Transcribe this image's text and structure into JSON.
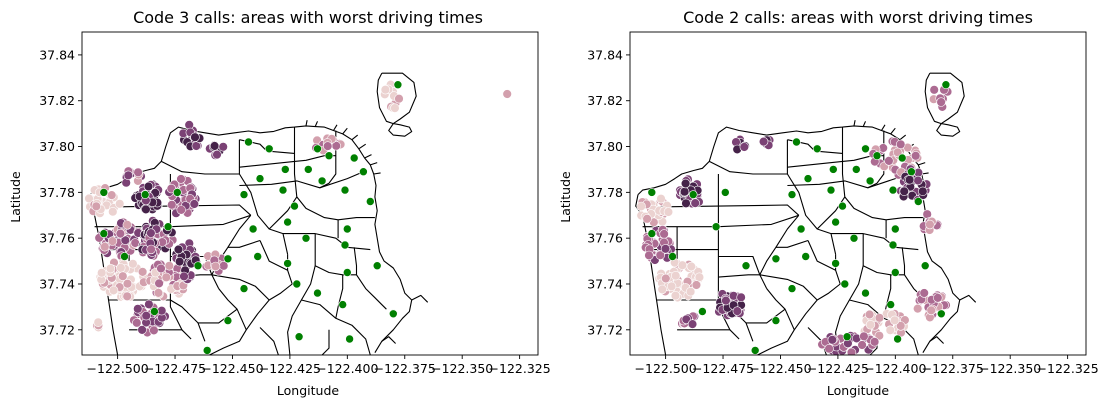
{
  "chart_data": [
    {
      "type": "scatter",
      "title": "Code 3 calls: areas with worst driving times",
      "xlabel": "Longitude",
      "ylabel": "Latitude",
      "xlim": [
        -122.5155,
        -122.317
      ],
      "ylim": [
        37.709,
        37.85
      ],
      "x_ticks": [
        "−122.500",
        "−122.475",
        "−122.450",
        "−122.425",
        "−122.400",
        "−122.375",
        "−122.350",
        "−122.325"
      ],
      "x_tick_values": [
        -122.5,
        -122.475,
        -122.45,
        -122.425,
        -122.4,
        -122.375,
        -122.35,
        -122.325
      ],
      "y_ticks": [
        "37.72",
        "37.74",
        "37.76",
        "37.78",
        "37.80",
        "37.82",
        "37.84"
      ],
      "y_tick_values": [
        37.72,
        37.74,
        37.76,
        37.78,
        37.8,
        37.82,
        37.84
      ],
      "grid": false,
      "legend": "none",
      "background_map": "San Francisco neighborhood boundaries (black outlines)",
      "stations_color": "#008000",
      "stations": [
        [
          -122.378,
          37.827
        ],
        [
          -122.443,
          37.802
        ],
        [
          -122.434,
          37.799
        ],
        [
          -122.413,
          37.799
        ],
        [
          -122.397,
          37.795
        ],
        [
          -122.408,
          37.796
        ],
        [
          -122.417,
          37.79
        ],
        [
          -122.427,
          37.79
        ],
        [
          -122.438,
          37.786
        ],
        [
          -122.411,
          37.785
        ],
        [
          -122.393,
          37.789
        ],
        [
          -122.401,
          37.781
        ],
        [
          -122.428,
          37.781
        ],
        [
          -122.445,
          37.779
        ],
        [
          -122.423,
          37.774
        ],
        [
          -122.39,
          37.776
        ],
        [
          -122.506,
          37.78
        ],
        [
          -122.488,
          37.779
        ],
        [
          -122.474,
          37.78
        ],
        [
          -122.506,
          37.762
        ],
        [
          -122.497,
          37.752
        ],
        [
          -122.478,
          37.765
        ],
        [
          -122.426,
          37.767
        ],
        [
          -122.441,
          37.764
        ],
        [
          -122.4,
          37.764
        ],
        [
          -122.418,
          37.76
        ],
        [
          -122.401,
          37.757
        ],
        [
          -122.452,
          37.751
        ],
        [
          -122.439,
          37.752
        ],
        [
          -122.426,
          37.749
        ],
        [
          -122.465,
          37.748
        ],
        [
          -122.387,
          37.748
        ],
        [
          -122.445,
          37.738
        ],
        [
          -122.422,
          37.74
        ],
        [
          -122.4,
          37.745
        ],
        [
          -122.413,
          37.736
        ],
        [
          -122.484,
          37.728
        ],
        [
          -122.402,
          37.731
        ],
        [
          -122.452,
          37.724
        ],
        [
          -122.38,
          37.727
        ],
        [
          -122.421,
          37.717
        ],
        [
          -122.399,
          37.716
        ],
        [
          -122.461,
          37.711
        ]
      ],
      "calls_palette": [
        "#ebd2d0",
        "#d3a0ad",
        "#ac6b92",
        "#7b4275",
        "#452249"
      ],
      "call_clusters": [
        {
          "lon": -122.468,
          "lat": 37.803,
          "rlon": 0.004,
          "rlat": 0.007,
          "n": 14,
          "tones": [
            3,
            4
          ]
        },
        {
          "lon": -122.457,
          "lat": 37.798,
          "rlon": 0.004,
          "rlat": 0.003,
          "n": 8,
          "tones": [
            3,
            4
          ]
        },
        {
          "lon": -122.493,
          "lat": 37.786,
          "rlon": 0.004,
          "rlat": 0.004,
          "n": 12,
          "tones": [
            1,
            2,
            3
          ]
        },
        {
          "lon": -122.506,
          "lat": 37.776,
          "rlon": 0.008,
          "rlat": 0.006,
          "n": 30,
          "tones": [
            0,
            0,
            1
          ]
        },
        {
          "lon": -122.487,
          "lat": 37.778,
          "rlon": 0.006,
          "rlat": 0.006,
          "n": 40,
          "tones": [
            3,
            4,
            4
          ]
        },
        {
          "lon": -122.472,
          "lat": 37.778,
          "rlon": 0.006,
          "rlat": 0.008,
          "n": 45,
          "tones": [
            2,
            3
          ]
        },
        {
          "lon": -122.5,
          "lat": 37.76,
          "rlon": 0.008,
          "rlat": 0.008,
          "n": 60,
          "tones": [
            1,
            2,
            3
          ]
        },
        {
          "lon": -122.484,
          "lat": 37.76,
          "rlon": 0.008,
          "rlat": 0.008,
          "n": 55,
          "tones": [
            2,
            3,
            4
          ]
        },
        {
          "lon": -122.498,
          "lat": 37.742,
          "rlon": 0.01,
          "rlat": 0.008,
          "n": 70,
          "tones": [
            0,
            0,
            1
          ]
        },
        {
          "lon": -122.478,
          "lat": 37.742,
          "rlon": 0.008,
          "rlat": 0.008,
          "n": 55,
          "tones": [
            0,
            1,
            2
          ]
        },
        {
          "lon": -122.47,
          "lat": 37.75,
          "rlon": 0.005,
          "rlat": 0.008,
          "n": 30,
          "tones": [
            3,
            4
          ]
        },
        {
          "lon": -122.458,
          "lat": 37.749,
          "rlon": 0.005,
          "rlat": 0.004,
          "n": 12,
          "tones": [
            1,
            2
          ]
        },
        {
          "lon": -122.486,
          "lat": 37.725,
          "rlon": 0.007,
          "rlat": 0.007,
          "n": 30,
          "tones": [
            2,
            3
          ]
        },
        {
          "lon": -122.508,
          "lat": 37.722,
          "rlon": 0.002,
          "rlat": 0.004,
          "n": 4,
          "tones": [
            0,
            1
          ]
        },
        {
          "lon": -122.41,
          "lat": 37.801,
          "rlon": 0.008,
          "rlat": 0.003,
          "n": 14,
          "tones": [
            1,
            2
          ]
        },
        {
          "lon": -122.38,
          "lat": 37.822,
          "rlon": 0.004,
          "rlat": 0.006,
          "n": 12,
          "tones": [
            0,
            1
          ]
        },
        {
          "lon": -122.33,
          "lat": 37.823,
          "rlon": 0.0005,
          "rlat": 0.0005,
          "n": 1,
          "tones": [
            1
          ]
        }
      ]
    },
    {
      "type": "scatter",
      "title": "Code 2 calls: areas with worst driving times",
      "xlabel": "Longitude",
      "ylabel": "Latitude",
      "xlim": [
        -122.5155,
        -122.317
      ],
      "ylim": [
        37.709,
        37.85
      ],
      "x_ticks": [
        "−122.500",
        "−122.475",
        "−122.450",
        "−122.425",
        "−122.400",
        "−122.375",
        "−122.350",
        "−122.325"
      ],
      "x_tick_values": [
        -122.5,
        -122.475,
        -122.45,
        -122.425,
        -122.4,
        -122.375,
        -122.35,
        -122.325
      ],
      "y_ticks": [
        "37.72",
        "37.74",
        "37.76",
        "37.78",
        "37.80",
        "37.82",
        "37.84"
      ],
      "y_tick_values": [
        37.72,
        37.74,
        37.76,
        37.78,
        37.8,
        37.82,
        37.84
      ],
      "grid": false,
      "legend": "none",
      "background_map": "San Francisco neighborhood boundaries (black outlines)",
      "stations_color": "#008000",
      "stations": [
        [
          -122.378,
          37.827
        ],
        [
          -122.443,
          37.802
        ],
        [
          -122.434,
          37.799
        ],
        [
          -122.413,
          37.799
        ],
        [
          -122.397,
          37.795
        ],
        [
          -122.408,
          37.796
        ],
        [
          -122.417,
          37.79
        ],
        [
          -122.427,
          37.79
        ],
        [
          -122.438,
          37.786
        ],
        [
          -122.411,
          37.785
        ],
        [
          -122.393,
          37.789
        ],
        [
          -122.401,
          37.781
        ],
        [
          -122.428,
          37.781
        ],
        [
          -122.445,
          37.779
        ],
        [
          -122.423,
          37.774
        ],
        [
          -122.39,
          37.776
        ],
        [
          -122.506,
          37.78
        ],
        [
          -122.488,
          37.779
        ],
        [
          -122.474,
          37.78
        ],
        [
          -122.506,
          37.762
        ],
        [
          -122.497,
          37.752
        ],
        [
          -122.478,
          37.765
        ],
        [
          -122.426,
          37.767
        ],
        [
          -122.441,
          37.764
        ],
        [
          -122.4,
          37.764
        ],
        [
          -122.418,
          37.76
        ],
        [
          -122.401,
          37.757
        ],
        [
          -122.452,
          37.751
        ],
        [
          -122.439,
          37.752
        ],
        [
          -122.426,
          37.749
        ],
        [
          -122.465,
          37.748
        ],
        [
          -122.387,
          37.748
        ],
        [
          -122.445,
          37.738
        ],
        [
          -122.422,
          37.74
        ],
        [
          -122.4,
          37.745
        ],
        [
          -122.413,
          37.736
        ],
        [
          -122.484,
          37.728
        ],
        [
          -122.402,
          37.731
        ],
        [
          -122.452,
          37.724
        ],
        [
          -122.38,
          37.727
        ],
        [
          -122.421,
          37.717
        ],
        [
          -122.399,
          37.716
        ],
        [
          -122.461,
          37.711
        ]
      ],
      "calls_palette": [
        "#ebd2d0",
        "#d3a0ad",
        "#ac6b92",
        "#7b4275",
        "#452249"
      ],
      "call_clusters": [
        {
          "lon": -122.467,
          "lat": 37.801,
          "rlon": 0.003,
          "rlat": 0.004,
          "n": 8,
          "tones": [
            3,
            4
          ]
        },
        {
          "lon": -122.455,
          "lat": 37.801,
          "rlon": 0.003,
          "rlat": 0.002,
          "n": 5,
          "tones": [
            3,
            4
          ]
        },
        {
          "lon": -122.489,
          "lat": 37.78,
          "rlon": 0.005,
          "rlat": 0.006,
          "n": 30,
          "tones": [
            4,
            4,
            3
          ]
        },
        {
          "lon": -122.505,
          "lat": 37.772,
          "rlon": 0.007,
          "rlat": 0.006,
          "n": 25,
          "tones": [
            0,
            1
          ]
        },
        {
          "lon": -122.503,
          "lat": 37.757,
          "rlon": 0.006,
          "rlat": 0.007,
          "n": 35,
          "tones": [
            2,
            3
          ]
        },
        {
          "lon": -122.494,
          "lat": 37.742,
          "rlon": 0.009,
          "rlat": 0.008,
          "n": 50,
          "tones": [
            0,
            0,
            1
          ]
        },
        {
          "lon": -122.472,
          "lat": 37.731,
          "rlon": 0.006,
          "rlat": 0.006,
          "n": 35,
          "tones": [
            3,
            4
          ]
        },
        {
          "lon": -122.49,
          "lat": 37.723,
          "rlon": 0.004,
          "rlat": 0.004,
          "n": 10,
          "tones": [
            2,
            3
          ]
        },
        {
          "lon": -122.4,
          "lat": 37.795,
          "rlon": 0.01,
          "rlat": 0.008,
          "n": 35,
          "tones": [
            1,
            2
          ]
        },
        {
          "lon": -122.392,
          "lat": 37.783,
          "rlon": 0.006,
          "rlat": 0.008,
          "n": 30,
          "tones": [
            3,
            4
          ]
        },
        {
          "lon": -122.385,
          "lat": 37.766,
          "rlon": 0.004,
          "rlat": 0.005,
          "n": 10,
          "tones": [
            1,
            2
          ]
        },
        {
          "lon": -122.38,
          "lat": 37.822,
          "rlon": 0.004,
          "rlat": 0.006,
          "n": 8,
          "tones": [
            1,
            2
          ]
        },
        {
          "lon": -122.385,
          "lat": 37.731,
          "rlon": 0.008,
          "rlat": 0.006,
          "n": 25,
          "tones": [
            1,
            2
          ]
        },
        {
          "lon": -122.405,
          "lat": 37.722,
          "rlon": 0.01,
          "rlat": 0.006,
          "n": 35,
          "tones": [
            0,
            1
          ]
        },
        {
          "lon": -122.42,
          "lat": 37.714,
          "rlon": 0.012,
          "rlat": 0.004,
          "n": 30,
          "tones": [
            2,
            3
          ]
        }
      ]
    }
  ]
}
